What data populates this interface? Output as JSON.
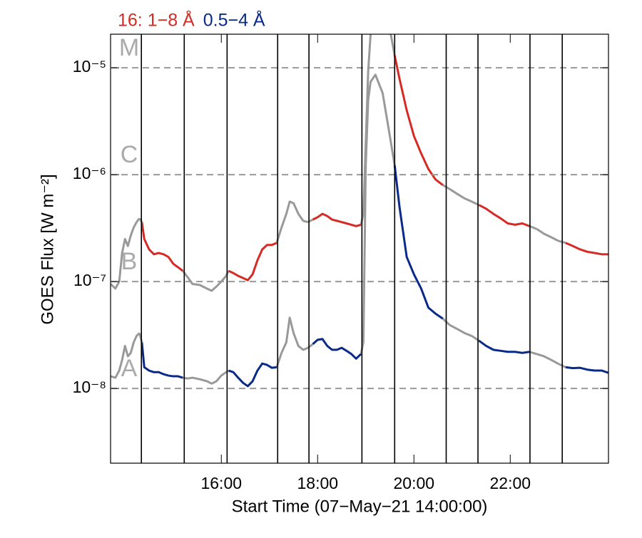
{
  "chart_data": {
    "type": "line",
    "y_label": "GOES Flux [W m⁻²]",
    "x_label": "Start Time (07−May−21 14:00:00)",
    "log_y": true,
    "xlim": [
      13.7,
      24.04
    ],
    "ylim": [
      2e-09,
      2.06e-05
    ],
    "xticks": [
      {
        "value": 16,
        "label": "16:00"
      },
      {
        "value": 18,
        "label": "18:00"
      },
      {
        "value": 20,
        "label": "20:00"
      },
      {
        "value": 22,
        "label": "22:00"
      }
    ],
    "yticks": [
      {
        "value": 1e-08,
        "label": "10⁻⁸"
      },
      {
        "value": 1e-07,
        "label": "10⁻⁷"
      },
      {
        "value": 1e-06,
        "label": "10⁻⁶"
      },
      {
        "value": 1e-05,
        "label": "10⁻⁵"
      }
    ],
    "grid": true,
    "inactive_color": "#999999",
    "vlines": [
      14.34,
      15.23,
      16.12,
      17.17,
      17.82,
      18.92,
      19.6,
      20.67,
      21.33,
      22.41,
      23.08
    ],
    "class_labels": [
      {
        "text": "A",
        "value": 1e-08
      },
      {
        "text": "B",
        "value": 1e-07
      },
      {
        "text": "C",
        "value": 1e-06
      },
      {
        "text": "M",
        "value": 1e-05
      }
    ],
    "x": [
      13.7,
      13.8,
      13.88,
      13.94,
      14.0,
      14.06,
      14.12,
      14.18,
      14.24,
      14.3,
      14.35,
      14.4,
      14.5,
      14.6,
      14.7,
      14.8,
      14.9,
      15.0,
      15.1,
      15.2,
      15.3,
      15.4,
      15.55,
      15.7,
      15.8,
      15.9,
      16.0,
      16.1,
      16.15,
      16.25,
      16.35,
      16.45,
      16.55,
      16.65,
      16.75,
      16.85,
      16.95,
      17.05,
      17.15,
      17.25,
      17.35,
      17.42,
      17.5,
      17.6,
      17.7,
      17.8,
      17.9,
      18.0,
      18.1,
      18.2,
      18.3,
      18.4,
      18.5,
      18.6,
      18.7,
      18.8,
      18.9,
      18.95,
      19.0,
      19.05,
      19.1,
      19.2,
      19.35,
      19.5,
      19.6,
      19.7,
      19.85,
      20.0,
      20.15,
      20.3,
      20.45,
      20.6,
      20.75,
      20.9,
      21.05,
      21.2,
      21.35,
      21.5,
      21.65,
      21.8,
      21.95,
      22.1,
      22.25,
      22.4,
      22.55,
      22.7,
      22.85,
      23.0,
      23.15,
      23.3,
      23.45,
      23.6,
      23.75,
      23.9,
      24.04
    ],
    "series": [
      {
        "name": "16: 1−8 Å",
        "color": "#d62a24",
        "values": [
          9.5e-08,
          8.6e-08,
          1e-07,
          1.85e-07,
          2.5e-07,
          2.15e-07,
          2.7e-07,
          3.2e-07,
          3.6e-07,
          3.9e-07,
          3.6e-07,
          2.5e-07,
          2e-07,
          1.8e-07,
          1.85e-07,
          1.8e-07,
          1.7e-07,
          1.47e-07,
          1.36e-07,
          1.26e-07,
          1.1e-07,
          9.5e-08,
          9.3e-08,
          8.6e-08,
          8.2e-08,
          9e-08,
          1e-07,
          1.13e-07,
          1.26e-07,
          1.2e-07,
          1.13e-07,
          1.08e-07,
          1.03e-07,
          1.17e-07,
          1.58e-07,
          2e-07,
          2.2e-07,
          2.2e-07,
          2.3e-07,
          3.2e-07,
          4.3e-07,
          5.6e-07,
          5.4e-07,
          4.3e-07,
          3.7e-07,
          3.6e-07,
          3.8e-07,
          4e-07,
          4.3e-07,
          4.1e-07,
          3.8e-07,
          3.7e-07,
          3.6e-07,
          3.5e-07,
          3.4e-07,
          3.3e-07,
          3.4e-07,
          4.3e-07,
          2e-06,
          9.3e-06,
          2.06e-05,
          2.5e-05,
          2.9e-05,
          2.3e-05,
          1.3e-05,
          7.9e-06,
          4e-06,
          2.3e-06,
          1.58e-06,
          1.13e-06,
          9e-07,
          8e-07,
          7.3e-07,
          6.6e-07,
          6e-07,
          5.6e-07,
          5.2e-07,
          4.8e-07,
          4.3e-07,
          3.9e-07,
          3.5e-07,
          3.4e-07,
          3.5e-07,
          3.3e-07,
          3.1e-07,
          2.8e-07,
          2.6e-07,
          2.4e-07,
          2.3e-07,
          2.15e-07,
          2e-07,
          1.9e-07,
          1.85e-07,
          1.8e-07,
          1.8e-07
        ]
      },
      {
        "name": "0.5−4 Å",
        "color": "#0a2a8a",
        "values": [
          1.3e-08,
          1.26e-08,
          1.47e-08,
          1.85e-08,
          2.5e-08,
          2e-08,
          2.15e-08,
          2.7e-08,
          3.1e-08,
          3.3e-08,
          2.7e-08,
          1.58e-08,
          1.47e-08,
          1.42e-08,
          1.42e-08,
          1.36e-08,
          1.32e-08,
          1.3e-08,
          1.3e-08,
          1.26e-08,
          1.24e-08,
          1.26e-08,
          1.22e-08,
          1.17e-08,
          1.11e-08,
          1.17e-08,
          1.32e-08,
          1.42e-08,
          1.47e-08,
          1.42e-08,
          1.26e-08,
          1.13e-08,
          1.05e-08,
          1.17e-08,
          1.47e-08,
          1.71e-08,
          1.66e-08,
          1.56e-08,
          1.58e-08,
          2.15e-08,
          2.7e-08,
          4.6e-08,
          3.3e-08,
          2.5e-08,
          2.3e-08,
          2.4e-08,
          2.6e-08,
          2.85e-08,
          2.9e-08,
          2.5e-08,
          2.3e-08,
          2.3e-08,
          2.4e-08,
          2.25e-08,
          2.1e-08,
          1.9e-08,
          2.1e-08,
          2.7e-08,
          1.26e-06,
          5e-06,
          7.4e-06,
          8.6e-06,
          5.8e-06,
          2.3e-06,
          1.22e-06,
          5e-07,
          1.7e-07,
          1.17e-07,
          8.6e-08,
          5.7e-08,
          5e-08,
          4.5e-08,
          3.9e-08,
          3.6e-08,
          3.3e-08,
          3.1e-08,
          2.8e-08,
          2.5e-08,
          2.3e-08,
          2.25e-08,
          2.2e-08,
          2.2e-08,
          2.15e-08,
          2.2e-08,
          2.1e-08,
          2e-08,
          1.85e-08,
          1.7e-08,
          1.58e-08,
          1.55e-08,
          1.56e-08,
          1.5e-08,
          1.47e-08,
          1.47e-08,
          1.4e-08
        ]
      }
    ]
  }
}
